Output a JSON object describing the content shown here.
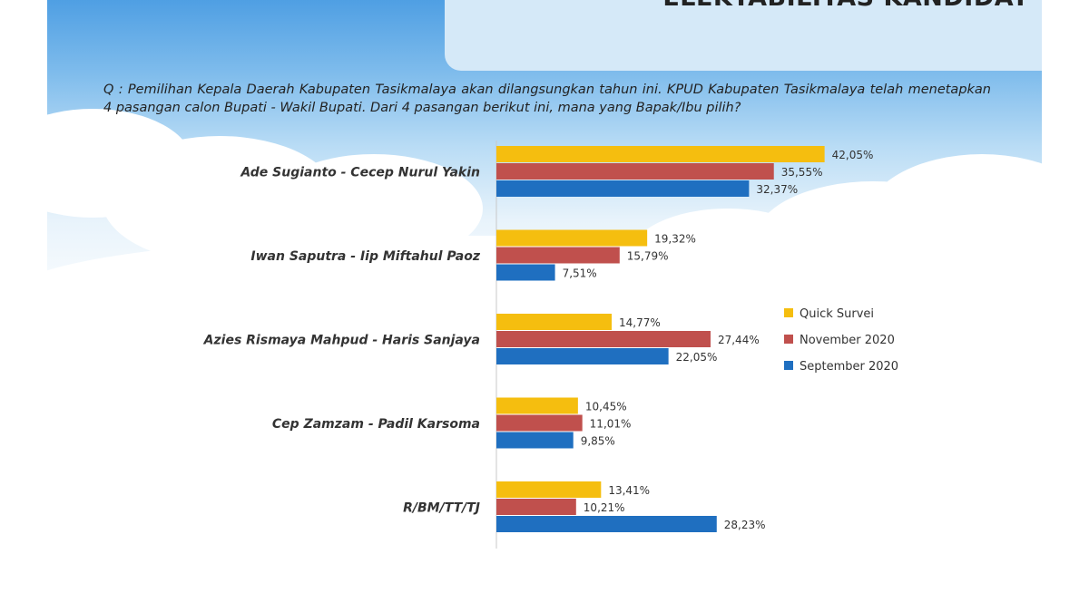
{
  "title": "ELEKTABILITAS KANDIDAT",
  "question": "Q : Pemilihan Kepala Daerah Kabupaten Tasikmalaya akan dilangsungkan tahun ini. KPUD Kabupaten Tasikmalaya telah menetapkan 4 pasangan calon Bupati - Wakil Bupati. Dari 4 pasangan berikut ini, mana yang Bapak/Ibu pilih?",
  "colors": {
    "quick_survei": "#f5be0f",
    "november_2020": "#c0504d",
    "september_2020": "#1f6fc0"
  },
  "chart_data": {
    "type": "bar",
    "orientation": "horizontal",
    "title": "",
    "xlabel": "",
    "ylabel": "",
    "legend_position": "right",
    "xlim": [
      0,
      50
    ],
    "categories": [
      "Ade Sugianto - Cecep Nurul Yakin",
      "Iwan Saputra - Iip Miftahul Paoz",
      "Azies Rismaya Mahpud - Haris Sanjaya",
      "Cep Zamzam - Padil Karsoma",
      "R/BM/TT/TJ"
    ],
    "series": [
      {
        "name": "Quick Survei",
        "values": [
          42.05,
          19.32,
          14.77,
          10.45,
          13.41
        ],
        "labels": [
          "42,05%",
          "19,32%",
          "14,77%",
          "10,45%",
          "13,41%"
        ]
      },
      {
        "name": "November 2020",
        "values": [
          35.55,
          15.79,
          27.44,
          11.01,
          10.21
        ],
        "labels": [
          "35,55%",
          "15,79%",
          "27,44%",
          "11,01%",
          "10,21%"
        ]
      },
      {
        "name": "September 2020",
        "values": [
          32.37,
          7.51,
          22.05,
          9.85,
          28.23
        ],
        "labels": [
          "32,37%",
          "7,51%",
          "22,05%",
          "9,85%",
          "28,23%"
        ]
      }
    ]
  }
}
